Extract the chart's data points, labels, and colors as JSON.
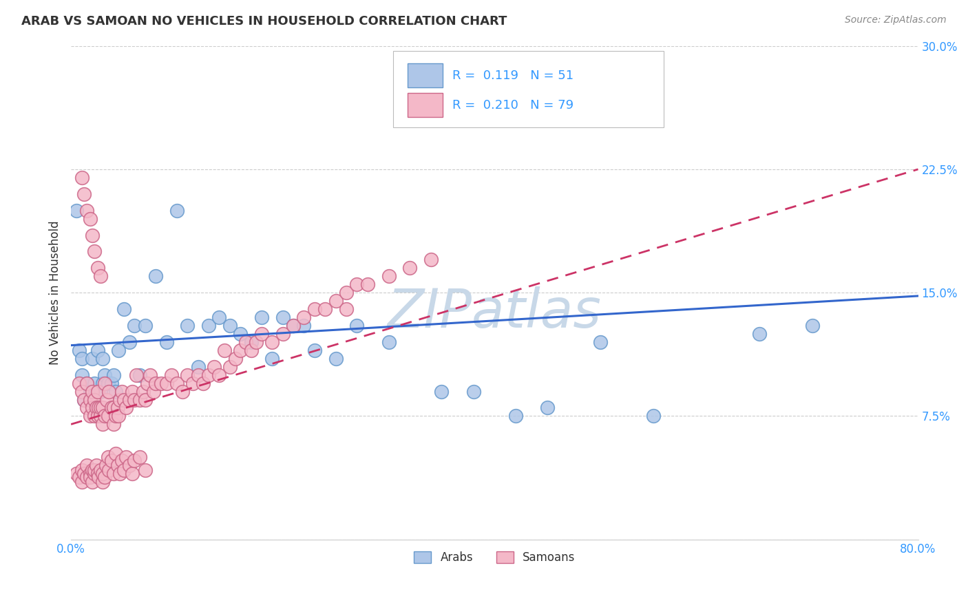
{
  "title": "ARAB VS SAMOAN NO VEHICLES IN HOUSEHOLD CORRELATION CHART",
  "source_text": "Source: ZipAtlas.com",
  "ylabel": "No Vehicles in Household",
  "xlabel": "",
  "xlim": [
    0.0,
    0.8
  ],
  "ylim": [
    0.0,
    0.3
  ],
  "xticks": [
    0.0,
    0.1,
    0.2,
    0.3,
    0.4,
    0.5,
    0.6,
    0.7,
    0.8
  ],
  "xticklabels": [
    "0.0%",
    "",
    "",
    "",
    "",
    "",
    "",
    "",
    "80.0%"
  ],
  "yticks": [
    0.0,
    0.075,
    0.15,
    0.225,
    0.3
  ],
  "yticklabels": [
    "",
    "7.5%",
    "15.0%",
    "22.5%",
    "30.0%"
  ],
  "grid_color": "#cccccc",
  "background_color": "#ffffff",
  "watermark_text": "ZIPatlas",
  "watermark_color": "#c8d8e8",
  "arab_color": "#aec6e8",
  "arab_edge_color": "#6699cc",
  "samoan_color": "#f4b8c8",
  "samoan_edge_color": "#cc6688",
  "arab_line_color": "#3366cc",
  "samoan_line_color": "#cc3366",
  "arab_R": 0.119,
  "arab_N": 51,
  "samoan_R": 0.21,
  "samoan_N": 79,
  "legend_label_arab": "Arabs",
  "legend_label_samoan": "Samoans",
  "legend_R_text_arab": "R =  0.119   N = 51",
  "legend_R_text_samoan": "R =  0.210   N = 79",
  "title_color": "#333333",
  "axis_label_color": "#333333",
  "tick_color": "#3399ff",
  "legend_text_color": "#3399ff",
  "arab_line_x0": 0.0,
  "arab_line_y0": 0.118,
  "arab_line_x1": 0.8,
  "arab_line_y1": 0.148,
  "samoan_line_x0": 0.0,
  "samoan_line_y0": 0.07,
  "samoan_line_x1": 0.8,
  "samoan_line_y1": 0.225,
  "arab_x": [
    0.005,
    0.008,
    0.01,
    0.01,
    0.012,
    0.015,
    0.018,
    0.02,
    0.022,
    0.025,
    0.028,
    0.03,
    0.03,
    0.032,
    0.035,
    0.038,
    0.04,
    0.042,
    0.045,
    0.05,
    0.055,
    0.06,
    0.065,
    0.07,
    0.08,
    0.09,
    0.1,
    0.11,
    0.12,
    0.13,
    0.14,
    0.15,
    0.16,
    0.17,
    0.18,
    0.19,
    0.2,
    0.21,
    0.22,
    0.23,
    0.25,
    0.27,
    0.3,
    0.35,
    0.38,
    0.42,
    0.45,
    0.5,
    0.55,
    0.65,
    0.7
  ],
  "arab_y": [
    0.2,
    0.115,
    0.1,
    0.11,
    0.085,
    0.095,
    0.09,
    0.11,
    0.095,
    0.115,
    0.09,
    0.11,
    0.095,
    0.1,
    0.095,
    0.095,
    0.1,
    0.09,
    0.115,
    0.14,
    0.12,
    0.13,
    0.1,
    0.13,
    0.16,
    0.12,
    0.2,
    0.13,
    0.105,
    0.13,
    0.135,
    0.13,
    0.125,
    0.12,
    0.135,
    0.11,
    0.135,
    0.13,
    0.13,
    0.115,
    0.11,
    0.13,
    0.12,
    0.09,
    0.09,
    0.075,
    0.08,
    0.12,
    0.075,
    0.125,
    0.13
  ],
  "samoan_x": [
    0.008,
    0.01,
    0.012,
    0.015,
    0.015,
    0.018,
    0.018,
    0.02,
    0.02,
    0.022,
    0.022,
    0.024,
    0.025,
    0.025,
    0.026,
    0.028,
    0.028,
    0.03,
    0.03,
    0.032,
    0.032,
    0.034,
    0.035,
    0.036,
    0.038,
    0.04,
    0.04,
    0.042,
    0.044,
    0.045,
    0.046,
    0.048,
    0.05,
    0.052,
    0.055,
    0.058,
    0.06,
    0.062,
    0.065,
    0.068,
    0.07,
    0.072,
    0.075,
    0.078,
    0.08,
    0.085,
    0.09,
    0.095,
    0.1,
    0.105,
    0.11,
    0.115,
    0.12,
    0.125,
    0.13,
    0.135,
    0.14,
    0.145,
    0.15,
    0.155,
    0.16,
    0.165,
    0.17,
    0.175,
    0.18,
    0.19,
    0.2,
    0.21,
    0.22,
    0.23,
    0.24,
    0.25,
    0.26,
    0.27,
    0.28,
    0.3,
    0.32,
    0.34,
    0.26
  ],
  "samoan_y": [
    0.095,
    0.09,
    0.085,
    0.08,
    0.095,
    0.075,
    0.085,
    0.08,
    0.09,
    0.075,
    0.085,
    0.08,
    0.075,
    0.09,
    0.08,
    0.075,
    0.08,
    0.07,
    0.08,
    0.075,
    0.095,
    0.085,
    0.075,
    0.09,
    0.08,
    0.07,
    0.08,
    0.075,
    0.08,
    0.075,
    0.085,
    0.09,
    0.085,
    0.08,
    0.085,
    0.09,
    0.085,
    0.1,
    0.085,
    0.09,
    0.085,
    0.095,
    0.1,
    0.09,
    0.095,
    0.095,
    0.095,
    0.1,
    0.095,
    0.09,
    0.1,
    0.095,
    0.1,
    0.095,
    0.1,
    0.105,
    0.1,
    0.115,
    0.105,
    0.11,
    0.115,
    0.12,
    0.115,
    0.12,
    0.125,
    0.12,
    0.125,
    0.13,
    0.135,
    0.14,
    0.14,
    0.145,
    0.15,
    0.155,
    0.155,
    0.16,
    0.165,
    0.17,
    0.14
  ],
  "samoan_cluster_x": [
    0.005,
    0.008,
    0.01,
    0.01,
    0.012,
    0.015,
    0.015,
    0.018,
    0.018,
    0.02,
    0.02,
    0.022,
    0.022,
    0.024,
    0.025,
    0.026,
    0.028,
    0.03,
    0.03,
    0.032,
    0.033,
    0.035,
    0.036,
    0.038,
    0.04,
    0.042,
    0.044,
    0.046,
    0.048,
    0.05,
    0.052,
    0.055,
    0.058,
    0.06,
    0.065,
    0.07
  ],
  "samoan_cluster_y": [
    0.04,
    0.038,
    0.042,
    0.035,
    0.04,
    0.038,
    0.045,
    0.04,
    0.038,
    0.042,
    0.035,
    0.04,
    0.042,
    0.045,
    0.04,
    0.038,
    0.042,
    0.035,
    0.04,
    0.038,
    0.045,
    0.05,
    0.042,
    0.048,
    0.04,
    0.052,
    0.045,
    0.04,
    0.048,
    0.042,
    0.05,
    0.045,
    0.04,
    0.048,
    0.05,
    0.042
  ],
  "samoan_high_x": [
    0.01,
    0.012,
    0.015,
    0.018,
    0.02,
    0.022,
    0.025,
    0.028
  ],
  "samoan_high_y": [
    0.22,
    0.21,
    0.2,
    0.195,
    0.185,
    0.175,
    0.165,
    0.16
  ]
}
